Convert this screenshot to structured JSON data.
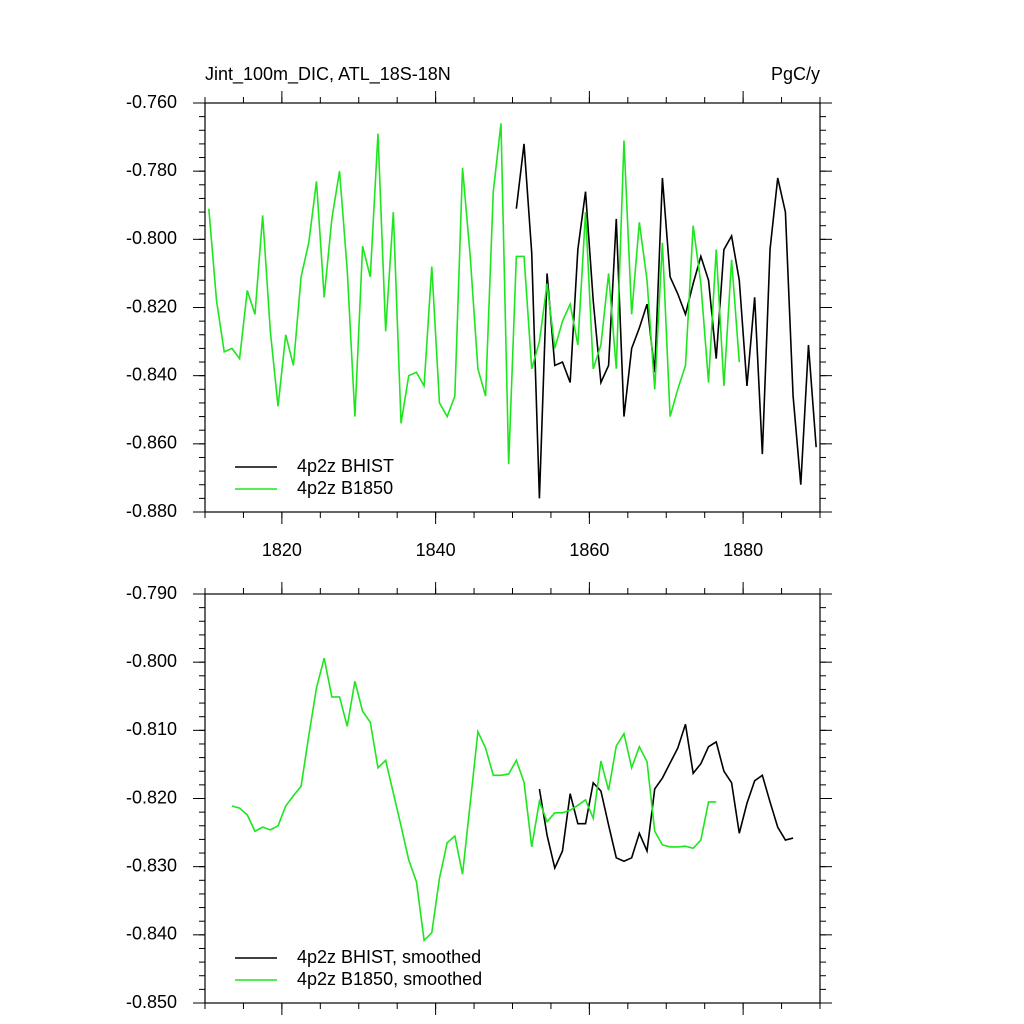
{
  "chart_data": [
    {
      "type": "line",
      "title": "Jint_100m_DIC, ATL_18S-18N",
      "right_title": "PgC/y",
      "xlim": [
        1810,
        1890
      ],
      "xticks": [
        1820,
        1840,
        1860,
        1880
      ],
      "ylim": [
        -0.88,
        -0.76
      ],
      "yticks": [
        {
          "value": -0.88,
          "label": "-0.880"
        },
        {
          "value": -0.86,
          "label": "-0.860"
        },
        {
          "value": -0.84,
          "label": "-0.840"
        },
        {
          "value": -0.82,
          "label": "-0.820"
        },
        {
          "value": -0.8,
          "label": "-0.800"
        },
        {
          "value": -0.78,
          "label": "-0.780"
        },
        {
          "value": -0.76,
          "label": "-0.760"
        }
      ],
      "legend": "lower left",
      "series": [
        {
          "name": "4p2z BHIST",
          "color": "#000000",
          "x": [
            1850.5,
            1851.5,
            1852.5,
            1853.5,
            1854.5,
            1855.5,
            1856.5,
            1857.5,
            1858.5,
            1859.5,
            1860.5,
            1861.5,
            1862.5,
            1863.5,
            1864.5,
            1865.5,
            1866.5,
            1867.5,
            1868.5,
            1869.5,
            1870.5,
            1871.5,
            1872.5,
            1873.5,
            1874.5,
            1875.5,
            1876.5,
            1877.5,
            1878.5,
            1879.5,
            1880.5,
            1881.5,
            1882.5,
            1883.5,
            1884.5,
            1885.5,
            1886.5,
            1887.5,
            1888.5,
            1889.5
          ],
          "values": [
            -0.791,
            -0.772,
            -0.804,
            -0.876,
            -0.81,
            -0.837,
            -0.836,
            -0.842,
            -0.803,
            -0.786,
            -0.818,
            -0.842,
            -0.837,
            -0.794,
            -0.852,
            -0.832,
            -0.826,
            -0.819,
            -0.839,
            -0.782,
            -0.811,
            -0.816,
            -0.822,
            -0.813,
            -0.805,
            -0.812,
            -0.835,
            -0.803,
            -0.799,
            -0.812,
            -0.843,
            -0.817,
            -0.863,
            -0.803,
            -0.782,
            -0.792,
            -0.846,
            -0.872,
            -0.831,
            -0.861
          ]
        },
        {
          "name": "4p2z B1850",
          "color": "#1ee61e",
          "x": [
            1810.5,
            1811.5,
            1812.5,
            1813.5,
            1814.5,
            1815.5,
            1816.5,
            1817.5,
            1818.5,
            1819.5,
            1820.5,
            1821.5,
            1822.5,
            1823.5,
            1824.5,
            1825.5,
            1826.5,
            1827.5,
            1828.5,
            1829.5,
            1830.5,
            1831.5,
            1832.5,
            1833.5,
            1834.5,
            1835.5,
            1836.5,
            1837.5,
            1838.5,
            1839.5,
            1840.5,
            1841.5,
            1842.5,
            1843.5,
            1844.5,
            1845.5,
            1846.5,
            1847.5,
            1848.5,
            1849.5,
            1850.5,
            1851.5,
            1852.5,
            1853.5,
            1854.5,
            1855.5,
            1856.5,
            1857.5,
            1858.5,
            1859.5,
            1860.5,
            1861.5,
            1862.5,
            1863.5,
            1864.5,
            1865.5,
            1866.5,
            1867.5,
            1868.5,
            1869.5,
            1870.5,
            1871.5,
            1872.5,
            1873.5,
            1874.5,
            1875.5,
            1876.5,
            1877.5,
            1878.5,
            1879.5
          ],
          "values": [
            -0.791,
            -0.818,
            -0.833,
            -0.832,
            -0.835,
            -0.815,
            -0.822,
            -0.793,
            -0.827,
            -0.849,
            -0.828,
            -0.837,
            -0.811,
            -0.801,
            -0.783,
            -0.817,
            -0.794,
            -0.78,
            -0.809,
            -0.852,
            -0.802,
            -0.811,
            -0.769,
            -0.827,
            -0.792,
            -0.854,
            -0.84,
            -0.839,
            -0.843,
            -0.808,
            -0.848,
            -0.852,
            -0.846,
            -0.779,
            -0.805,
            -0.838,
            -0.846,
            -0.786,
            -0.766,
            -0.866,
            -0.805,
            -0.805,
            -0.838,
            -0.83,
            -0.813,
            -0.832,
            -0.824,
            -0.819,
            -0.831,
            -0.792,
            -0.838,
            -0.831,
            -0.81,
            -0.838,
            -0.771,
            -0.822,
            -0.795,
            -0.812,
            -0.844,
            -0.801,
            -0.852,
            -0.844,
            -0.837,
            -0.796,
            -0.813,
            -0.842,
            -0.803,
            -0.843,
            -0.806,
            -0.836
          ]
        }
      ]
    },
    {
      "type": "line",
      "xlim": [
        1810,
        1890
      ],
      "ylim": [
        -0.85,
        -0.79
      ],
      "yticks": [
        {
          "value": -0.85,
          "label": "-0.850"
        },
        {
          "value": -0.84,
          "label": "-0.840"
        },
        {
          "value": -0.83,
          "label": "-0.830"
        },
        {
          "value": -0.82,
          "label": "-0.820"
        },
        {
          "value": -0.81,
          "label": "-0.810"
        },
        {
          "value": -0.8,
          "label": "-0.800"
        },
        {
          "value": -0.79,
          "label": "-0.790"
        }
      ],
      "legend": "lower left",
      "series": [
        {
          "name": "4p2z BHIST, smoothed",
          "color": "#000000",
          "x": [
            1853.5,
            1854.5,
            1855.5,
            1856.5,
            1857.5,
            1858.5,
            1859.5,
            1860.5,
            1861.5,
            1862.5,
            1863.5,
            1864.5,
            1865.5,
            1866.5,
            1867.5,
            1868.5,
            1869.5,
            1870.5,
            1871.5,
            1872.5,
            1873.5,
            1874.5,
            1875.5,
            1876.5,
            1877.5,
            1878.5,
            1879.5,
            1880.5,
            1881.5,
            1882.5,
            1883.5,
            1884.5,
            1885.5,
            1886.5
          ],
          "values": [
            -0.8186,
            -0.8254,
            -0.8302,
            -0.8277,
            -0.8193,
            -0.8237,
            -0.8237,
            -0.8177,
            -0.8189,
            -0.8239,
            -0.8287,
            -0.8292,
            -0.8287,
            -0.8251,
            -0.8277,
            -0.8186,
            -0.817,
            -0.8148,
            -0.8126,
            -0.8091,
            -0.8163,
            -0.8149,
            -0.8124,
            -0.8117,
            -0.816,
            -0.8177,
            -0.8251,
            -0.8207,
            -0.8174,
            -0.8166,
            -0.8205,
            -0.8242,
            -0.8261,
            -0.8258
          ]
        },
        {
          "name": "4p2z B1850, smoothed",
          "color": "#1ee61e",
          "x": [
            1813.5,
            1814.5,
            1815.5,
            1816.5,
            1817.5,
            1818.5,
            1819.5,
            1820.5,
            1821.5,
            1822.5,
            1823.5,
            1824.5,
            1825.5,
            1826.5,
            1827.5,
            1828.5,
            1829.5,
            1830.5,
            1831.5,
            1832.5,
            1833.5,
            1834.5,
            1835.5,
            1836.5,
            1837.5,
            1838.5,
            1839.5,
            1840.5,
            1841.5,
            1842.5,
            1843.5,
            1844.5,
            1845.5,
            1846.5,
            1847.5,
            1848.5,
            1849.5,
            1850.5,
            1851.5,
            1852.5,
            1853.5,
            1854.5,
            1855.5,
            1856.5,
            1857.5,
            1858.5,
            1859.5,
            1860.5,
            1861.5,
            1862.5,
            1863.5,
            1864.5,
            1865.5,
            1866.5,
            1867.5,
            1868.5,
            1869.5,
            1870.5,
            1871.5,
            1872.5,
            1873.5,
            1874.5,
            1875.5,
            1876.5
          ],
          "values": [
            -0.8211,
            -0.8214,
            -0.8224,
            -0.8248,
            -0.8242,
            -0.8246,
            -0.824,
            -0.8211,
            -0.8196,
            -0.8182,
            -0.8108,
            -0.8038,
            -0.7994,
            -0.8051,
            -0.8051,
            -0.8094,
            -0.8028,
            -0.8072,
            -0.8088,
            -0.8155,
            -0.8144,
            -0.8192,
            -0.824,
            -0.829,
            -0.8322,
            -0.8408,
            -0.8397,
            -0.8317,
            -0.8265,
            -0.8255,
            -0.8311,
            -0.8207,
            -0.8102,
            -0.8126,
            -0.8166,
            -0.8166,
            -0.8164,
            -0.8144,
            -0.8176,
            -0.8271,
            -0.8204,
            -0.8234,
            -0.8221,
            -0.8221,
            -0.8217,
            -0.821,
            -0.8202,
            -0.8229,
            -0.8145,
            -0.8188,
            -0.8123,
            -0.8105,
            -0.8155,
            -0.8124,
            -0.8146,
            -0.8248,
            -0.8268,
            -0.8271,
            -0.8271,
            -0.827,
            -0.8273,
            -0.8261,
            -0.8205,
            -0.8205
          ]
        }
      ]
    }
  ]
}
